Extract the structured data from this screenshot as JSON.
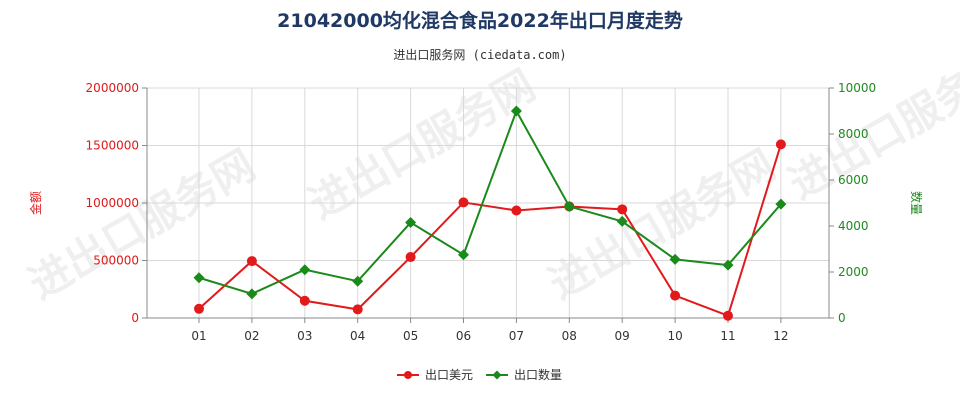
{
  "chart_data": {
    "type": "line",
    "title": "21042000均化混合食品2022年出口月度走势",
    "subtitle": "进出口服务网 (ciedata.com)",
    "categories": [
      "01",
      "02",
      "03",
      "04",
      "05",
      "06",
      "07",
      "08",
      "09",
      "10",
      "11",
      "12"
    ],
    "y_left": {
      "label": "金额",
      "ylim": [
        0,
        2000000
      ],
      "ticks": [
        0,
        500000,
        1000000,
        1500000,
        2000000
      ],
      "tick_labels": [
        "0",
        "500000",
        "1000000",
        "1500000",
        "2000000"
      ],
      "color": "#dd1a1a"
    },
    "y_right": {
      "label": "数量",
      "ylim": [
        0,
        10000
      ],
      "ticks": [
        0,
        2000,
        4000,
        6000,
        8000,
        10000
      ],
      "tick_labels": [
        "0",
        "2000",
        "4000",
        "6000",
        "8000",
        "10000"
      ],
      "color": "#1f8a1f"
    },
    "series": [
      {
        "name": "出口美元",
        "axis": "left",
        "color": "#e31a1c",
        "marker": "circle",
        "values": [
          80000,
          495000,
          150000,
          75000,
          530000,
          1005000,
          935000,
          970000,
          945000,
          195000,
          20000,
          1510000
        ]
      },
      {
        "name": "出口数量",
        "axis": "right",
        "color": "#1a8a1a",
        "marker": "diamond",
        "values": [
          1750,
          1050,
          2100,
          1600,
          4150,
          2750,
          9000,
          4850,
          4200,
          2550,
          2300,
          4950
        ]
      }
    ],
    "grid": "vertical",
    "legend_position": "bottom-center",
    "watermark": "进出口服务网"
  }
}
